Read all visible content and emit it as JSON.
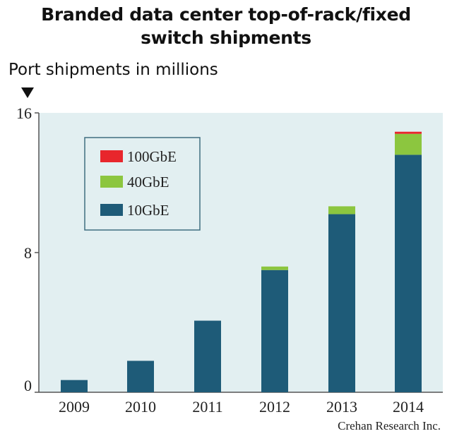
{
  "chart_data": {
    "type": "bar",
    "stacked": true,
    "title": "Branded data center top-of-rack/fixed switch shipments",
    "ylabel": "Port shipments  in millions",
    "categories": [
      "2009",
      "2010",
      "2011",
      "2012",
      "2013",
      "2014"
    ],
    "ylim": [
      0,
      16
    ],
    "yticks": [
      "0",
      "8",
      "16"
    ],
    "legend_position": "top-left",
    "series": [
      {
        "name": "10GbE",
        "color": "#1e5b78",
        "values": [
          0.7,
          1.8,
          4.1,
          7.0,
          10.2,
          13.6
        ]
      },
      {
        "name": "40GbE",
        "color": "#8cc63f",
        "values": [
          0,
          0,
          0,
          0.2,
          0.45,
          1.2
        ]
      },
      {
        "name": "100GbE",
        "color": "#e8262c",
        "values": [
          0,
          0,
          0,
          0,
          0,
          0.12
        ]
      }
    ],
    "source": "Crehan Research Inc."
  }
}
